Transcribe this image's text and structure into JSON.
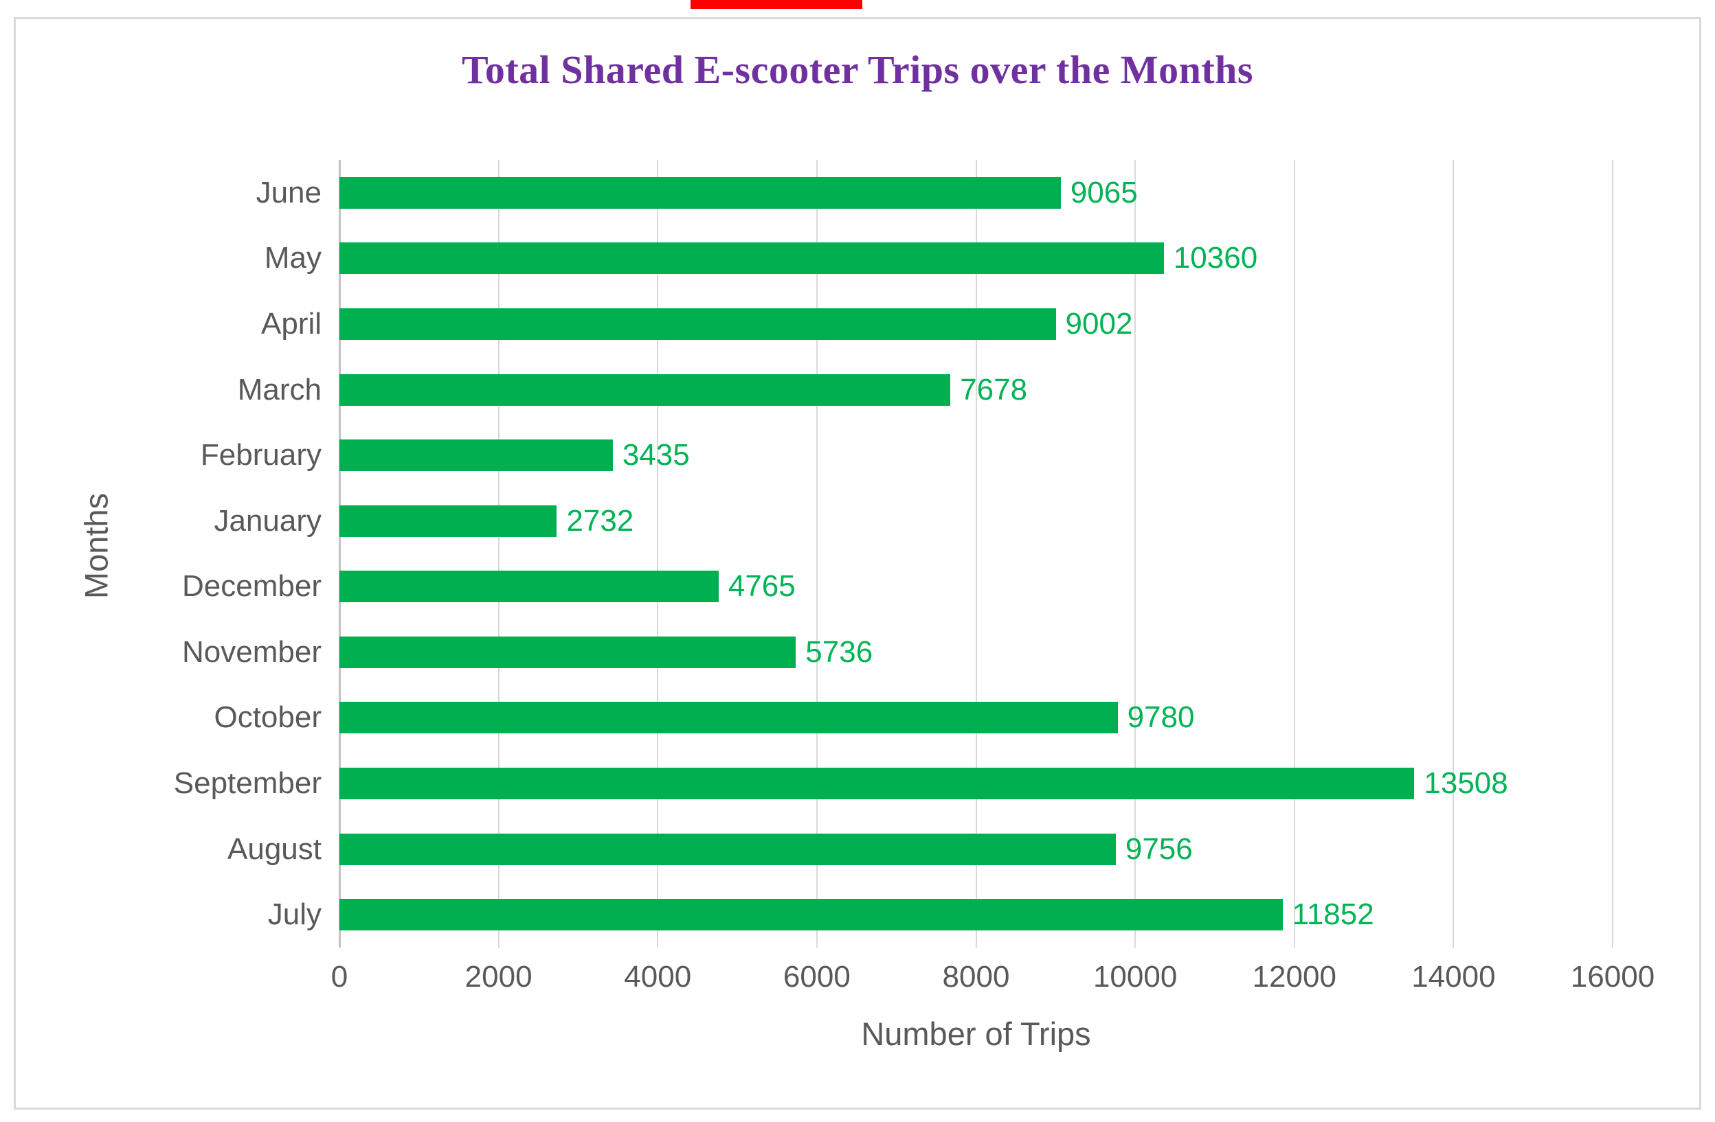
{
  "title": "Total Shared E-scooter Trips over the Months",
  "colors": {
    "title_text": "#7030A0",
    "bar_fill": "#00B050",
    "value_label": "#00B355",
    "axis_text": "#595959",
    "gridline": "#D9D9D9",
    "frame_border": "#D9D9D9",
    "top_artifact": "#FE0000"
  },
  "chart_data": {
    "type": "bar",
    "orientation": "horizontal",
    "title": "Total Shared E-scooter Trips over the Months",
    "categories": [
      "June",
      "May",
      "April",
      "March",
      "February",
      "January",
      "December",
      "November",
      "October",
      "September",
      "August",
      "July"
    ],
    "values": [
      9065,
      10360,
      9002,
      7678,
      3435,
      2732,
      4765,
      5736,
      9780,
      13508,
      9756,
      11852
    ],
    "xlabel": "Number of Trips",
    "ylabel": "Months",
    "xlim": [
      0,
      16000
    ],
    "xticks": [
      0,
      2000,
      4000,
      6000,
      8000,
      10000,
      12000,
      14000,
      16000
    ],
    "grid": "vertical-only",
    "legend": "none",
    "data_labels": "outside-end"
  }
}
